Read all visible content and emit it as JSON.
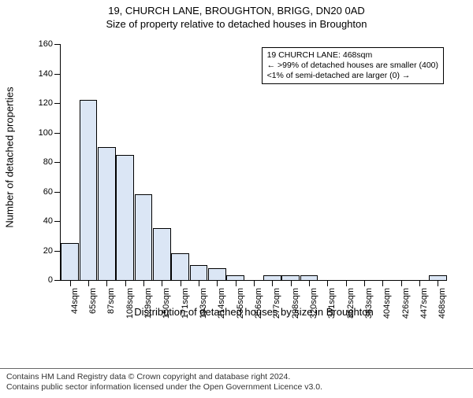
{
  "titles": {
    "main": "19, CHURCH LANE, BROUGHTON, BRIGG, DN20 0AD",
    "sub": "Size of property relative to detached houses in Broughton"
  },
  "chart": {
    "type": "histogram",
    "ylabel": "Number of detached properties",
    "xlabel": "Distribution of detached houses by size in Broughton",
    "ylim": [
      0,
      160
    ],
    "ytick_step": 20,
    "bar_color": "#dbe6f5",
    "bar_border_color": "#000000",
    "background_color": "#ffffff",
    "label_fontsize": 13,
    "tick_fontsize": 11,
    "categories": [
      "44sqm",
      "65sqm",
      "87sqm",
      "108sqm",
      "129sqm",
      "150sqm",
      "171sqm",
      "193sqm",
      "214sqm",
      "235sqm",
      "256sqm",
      "277sqm",
      "298sqm",
      "320sqm",
      "341sqm",
      "362sqm",
      "383sqm",
      "404sqm",
      "426sqm",
      "447sqm",
      "468sqm"
    ],
    "values": [
      25,
      122,
      90,
      85,
      58,
      35,
      18,
      10,
      8,
      3,
      0,
      3,
      3,
      3,
      0,
      0,
      0,
      0,
      0,
      0,
      3
    ]
  },
  "info_box": {
    "line1": "19 CHURCH LANE: 468sqm",
    "line2": "← >99% of detached houses are smaller (400)",
    "line3": "<1% of semi-detached are larger (0) →"
  },
  "footer": {
    "line1": "Contains HM Land Registry data © Crown copyright and database right 2024.",
    "line2": "Contains public sector information licensed under the Open Government Licence v3.0."
  }
}
